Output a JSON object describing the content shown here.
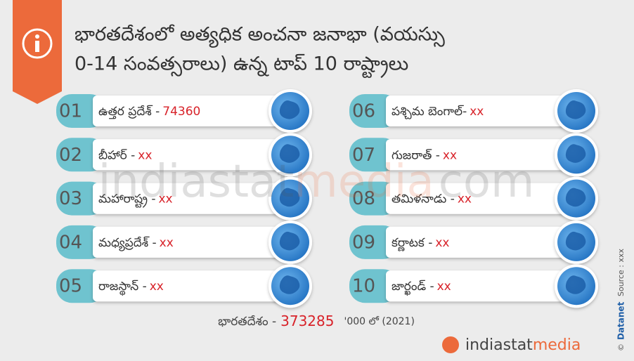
{
  "header": {
    "title_lines": [
      "భారతదేశంలో అత్యధిక అంచనా జనాభా (వయస్సు",
      "0-14 సంవత్సరాలు) ఉన్న టాప్ 10 రాష్ట్రాలు"
    ]
  },
  "items": [
    {
      "number": "01",
      "name": "ఉత్తర ప్రదేశ్ -",
      "value": "74360"
    },
    {
      "number": "02",
      "name": "బీహార్ -",
      "value": "xx"
    },
    {
      "number": "03",
      "name": "మహారాష్ట్ర -",
      "value": "xx"
    },
    {
      "number": "04",
      "name": "మధ్యప్రదేశ్ -",
      "value": "xx"
    },
    {
      "number": "05",
      "name": "రాజస్థాన్ -",
      "value": "xx"
    },
    {
      "number": "06",
      "name": "పశ్చిమ బెంగాల్-",
      "value": "xx"
    },
    {
      "number": "07",
      "name": "గుజరాత్ -",
      "value": "xx"
    },
    {
      "number": "08",
      "name": "తమిళనాడు -",
      "value": "xx"
    },
    {
      "number": "09",
      "name": "కర్ణాటక -",
      "value": "xx"
    },
    {
      "number": "10",
      "name": "జార్ఖండ్ -",
      "value": "xx"
    }
  ],
  "footer": {
    "label": "భారతదేశం -",
    "value": "373285",
    "unit": "'000 లో (2021)"
  },
  "watermark": {
    "part1": "indiastat",
    "part2": "media",
    "part3": "com"
  },
  "side": {
    "copyright": "©",
    "brand": "Datanet",
    "source": "Source : xxx"
  },
  "logo": {
    "part1": "indiastat",
    "part2": "media"
  }
}
